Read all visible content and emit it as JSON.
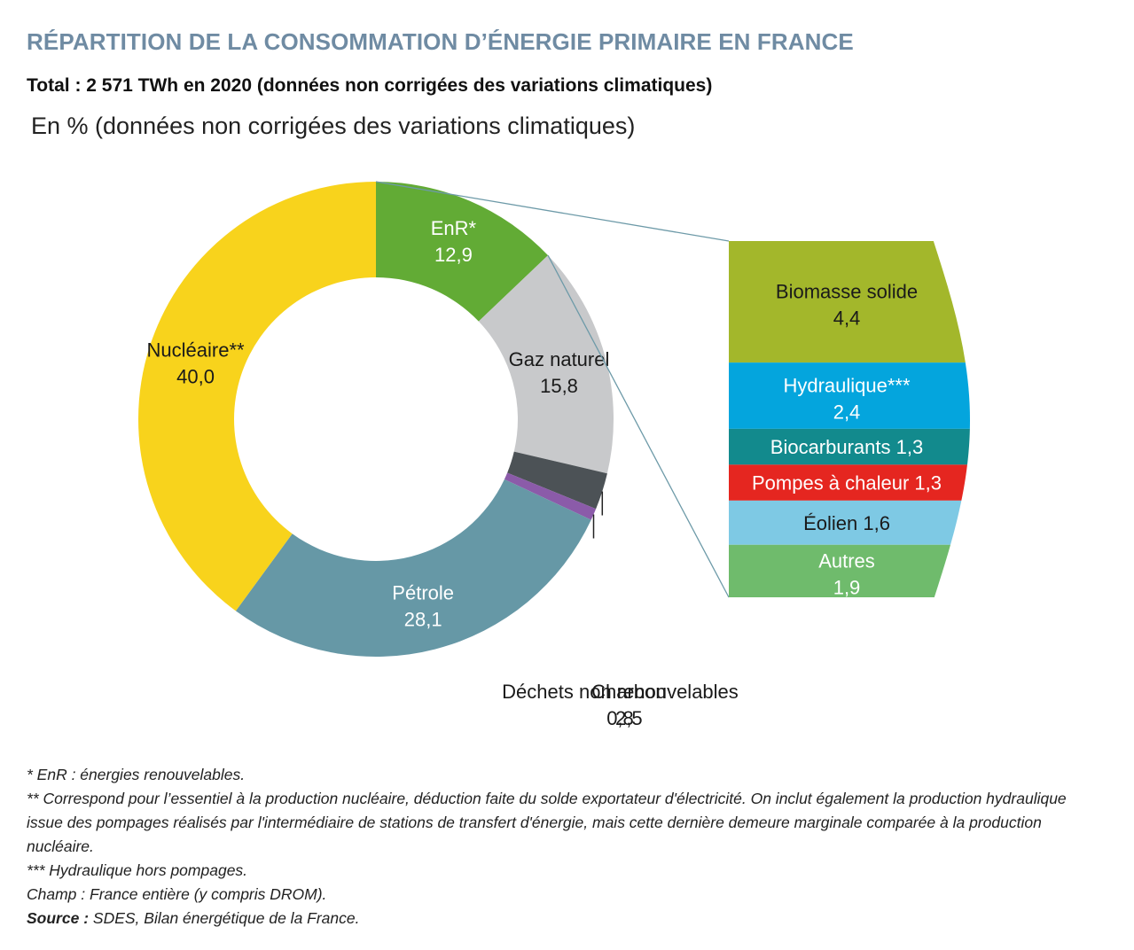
{
  "title": "RÉPARTITION DE LA CONSOMMATION D’ÉNERGIE PRIMAIRE EN FRANCE",
  "subtitle": "Total : 2 571 TWh en 2020 (données non corrigées des variations climatiques)",
  "unit_label": "En % (données non corrigées des variations climatiques)",
  "chart_data": [
    {
      "type": "pie",
      "variant": "donut",
      "start": "top",
      "direction": "clockwise",
      "slices": [
        {
          "label": "EnR*",
          "value": 12.9,
          "value_label": "12,9",
          "color": "#62ab35",
          "text_color": "#ffffff"
        },
        {
          "label": "Gaz naturel",
          "value": 15.8,
          "value_label": "15,8",
          "color": "#c8c9cb",
          "text_color": "#1a1a1a"
        },
        {
          "label": "Charbon",
          "value": 2.5,
          "value_label": "2,5",
          "color": "#4c5256",
          "text_color": "#1a1a1a"
        },
        {
          "label": "Déchets non renouvelables",
          "value": 0.8,
          "value_label": "0,8",
          "color": "#8b5ba9",
          "text_color": "#1a1a1a"
        },
        {
          "label": "Pétrole",
          "value": 28.1,
          "value_label": "28,1",
          "color": "#6698a6",
          "text_color": "#ffffff"
        },
        {
          "label": "Nucléaire**",
          "value": 40.0,
          "value_label": "40,0",
          "color": "#f8d31c",
          "text_color": "#1a1a1a"
        }
      ]
    },
    {
      "type": "bar",
      "variant": "stacked-breakdown",
      "parent": "EnR*",
      "segments": [
        {
          "label": "Biomasse solide",
          "value": 4.4,
          "value_label": "4,4",
          "color": "#a3b72b",
          "text_color": "#1a1a1a"
        },
        {
          "label": "Hydraulique***",
          "value": 2.4,
          "value_label": "2,4",
          "color": "#04a5dd",
          "text_color": "#ffffff"
        },
        {
          "label": "Biocarburants",
          "value": 1.3,
          "value_label": "1,3",
          "color": "#128a8d",
          "text_color": "#ffffff"
        },
        {
          "label": "Pompes à chaleur",
          "value": 1.3,
          "value_label": "1,3",
          "color": "#e52620",
          "text_color": "#ffffff"
        },
        {
          "label": "Éolien",
          "value": 1.6,
          "value_label": "1,6",
          "color": "#7ec9e4",
          "text_color": "#1a1a1a"
        },
        {
          "label": "Autres",
          "value": 1.9,
          "value_label": "1,9",
          "color": "#6fbb6c",
          "text_color": "#ffffff"
        }
      ]
    }
  ],
  "notes": [
    "* EnR : énergies renouvelables.",
    "** Correspond pour l’essentiel à la production nucléaire, déduction faite du solde exportateur d'électricité. On inclut également la production hydraulique issue des pompages réalisés par l'intermédiaire de stations de transfert d'énergie, mais cette dernière demeure marginale comparée à la production nucléaire.",
    "*** Hydraulique hors pompages.",
    "Champ : France entière (y compris DROM)."
  ],
  "source": {
    "label": "Source :",
    "text": " SDES, Bilan énergétique de la France."
  }
}
